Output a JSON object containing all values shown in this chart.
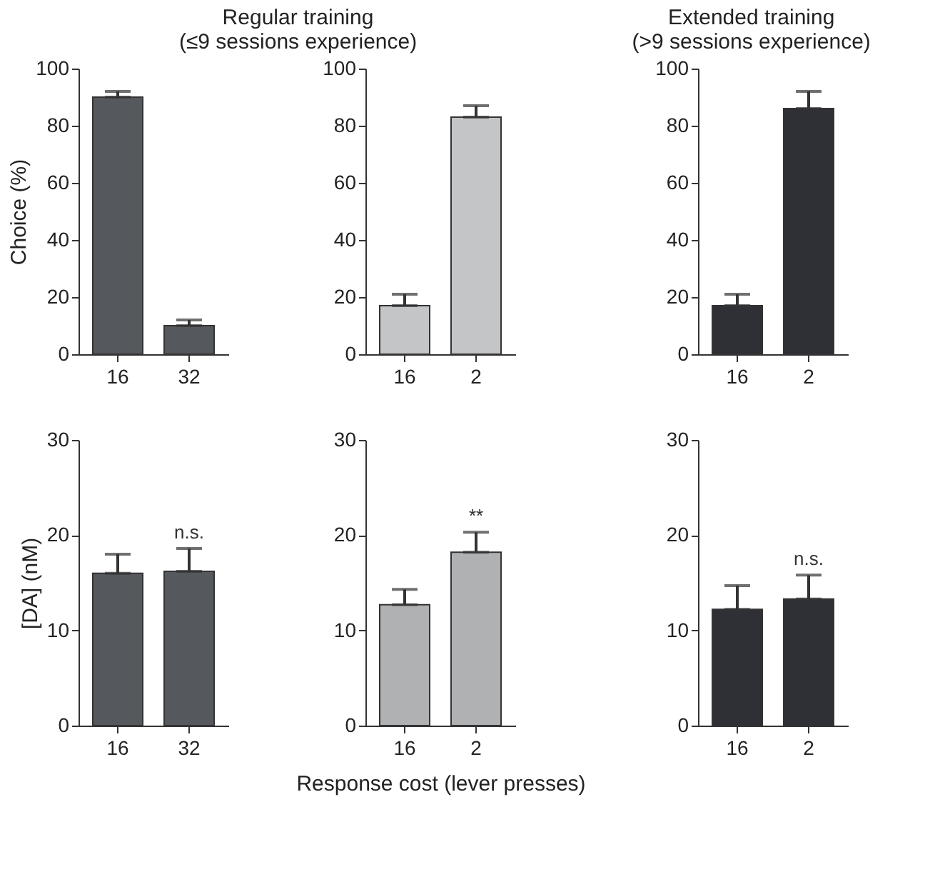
{
  "chart_data": [
    {
      "type": "bar",
      "title": "Regular training\n(≤9 sessions experience)",
      "ylabel": "Choice (%)",
      "categories": [
        "16",
        "32"
      ],
      "values": [
        90,
        10
      ],
      "errors": [
        [
          90,
          92
        ],
        [
          10,
          12
        ]
      ],
      "color": "#55585c",
      "ylim": [
        0,
        100
      ],
      "yticks": [
        0,
        20,
        40,
        60,
        80,
        100
      ]
    },
    {
      "type": "bar",
      "categories": [
        "16",
        "2"
      ],
      "values": [
        17,
        83
      ],
      "errors": [
        [
          17,
          21
        ],
        [
          83,
          87
        ]
      ],
      "color": "#c4c5c7",
      "ylim": [
        0,
        100
      ],
      "yticks": [
        0,
        20,
        40,
        60,
        80,
        100
      ]
    },
    {
      "type": "bar",
      "title": "Extended training\n(>9 sessions experience)",
      "categories": [
        "16",
        "2"
      ],
      "values": [
        17,
        86
      ],
      "errors": [
        [
          17,
          21
        ],
        [
          86,
          92
        ]
      ],
      "color": "#2e3035",
      "ylim": [
        0,
        100
      ],
      "yticks": [
        0,
        20,
        40,
        60,
        80,
        100
      ]
    },
    {
      "type": "bar",
      "ylabel": "[DA] (nM)",
      "categories": [
        "16",
        "32"
      ],
      "values": [
        16,
        16.2
      ],
      "errors": [
        [
          16,
          18
        ],
        [
          16.2,
          18.6
        ]
      ],
      "color": "#55585c",
      "ylim": [
        0,
        30
      ],
      "yticks": [
        0,
        10,
        20,
        30
      ],
      "annotations": [
        {
          "text": "n.s.",
          "x": "32",
          "y": 18.6
        }
      ]
    },
    {
      "type": "bar",
      "xlabel": "Response cost  (lever presses)",
      "categories": [
        "16",
        "2"
      ],
      "values": [
        12.7,
        18.2
      ],
      "errors": [
        [
          12.7,
          14.3
        ],
        [
          18.2,
          20.3
        ]
      ],
      "color": "#b0b1b3",
      "ylim": [
        0,
        30
      ],
      "yticks": [
        0,
        10,
        20,
        30
      ],
      "annotations": [
        {
          "text": "**",
          "x": "2",
          "y": 20.3
        }
      ]
    },
    {
      "type": "bar",
      "categories": [
        "16",
        "2"
      ],
      "values": [
        12.2,
        13.3
      ],
      "errors": [
        [
          12.2,
          14.7
        ],
        [
          13.3,
          15.8
        ]
      ],
      "color": "#2e3035",
      "ylim": [
        0,
        30
      ],
      "yticks": [
        0,
        10,
        20,
        30
      ],
      "annotations": [
        {
          "text": "n.s.",
          "x": "2",
          "y": 15.8
        }
      ]
    }
  ]
}
